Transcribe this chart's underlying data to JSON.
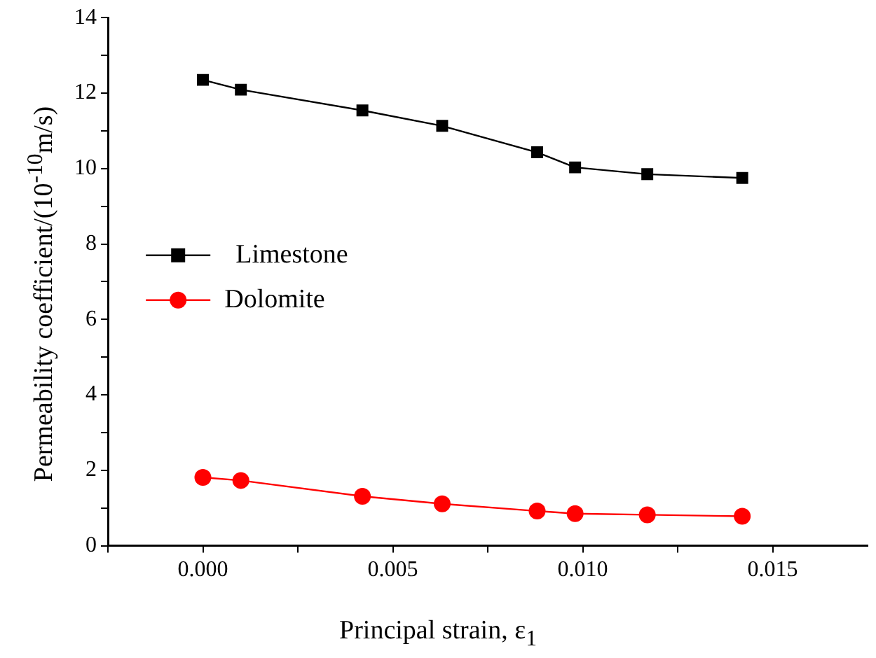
{
  "chart_data": {
    "type": "line",
    "xlabel": "Principal strain, ε$_{1}$",
    "ylabel": "Permeability coefficient/(10$^{-10}$m/s)",
    "x": [
      0.0,
      0.001,
      0.0042,
      0.0063,
      0.0088,
      0.0098,
      0.0117,
      0.0142
    ],
    "series": [
      {
        "name": "Limestone",
        "color": "#000000",
        "marker": "square",
        "values": [
          12.35,
          12.09,
          11.54,
          11.13,
          10.43,
          10.03,
          9.85,
          9.75
        ]
      },
      {
        "name": "Dolomite",
        "color": "#ff0000",
        "marker": "circle",
        "values": [
          1.81,
          1.73,
          1.31,
          1.11,
          0.92,
          0.85,
          0.82,
          0.78
        ]
      }
    ],
    "xlim": [
      -0.0025,
      0.0175
    ],
    "xticks": [
      {
        "value": -0.0025,
        "label": null
      },
      {
        "value": 0,
        "label": "0.000"
      },
      {
        "value": 0.0025,
        "label": null
      },
      {
        "value": 0.005,
        "label": "0.005"
      },
      {
        "value": 0.0075,
        "label": null
      },
      {
        "value": 0.01,
        "label": "0.010"
      },
      {
        "value": 0.0125,
        "label": null
      },
      {
        "value": 0.015,
        "label": "0.015"
      }
    ],
    "ylim": [
      0,
      14
    ],
    "yticks": [
      0,
      {
        "value": 1,
        "label": null
      },
      2,
      {
        "value": 3,
        "label": null
      },
      4,
      {
        "value": 5,
        "label": null
      },
      6,
      {
        "value": 7,
        "label": null
      },
      8,
      {
        "value": 9,
        "label": null
      },
      10,
      {
        "value": 11,
        "label": null
      },
      12,
      {
        "value": 13,
        "label": null
      },
      14
    ],
    "grid": false,
    "legend": "left",
    "line_style": "solid"
  }
}
